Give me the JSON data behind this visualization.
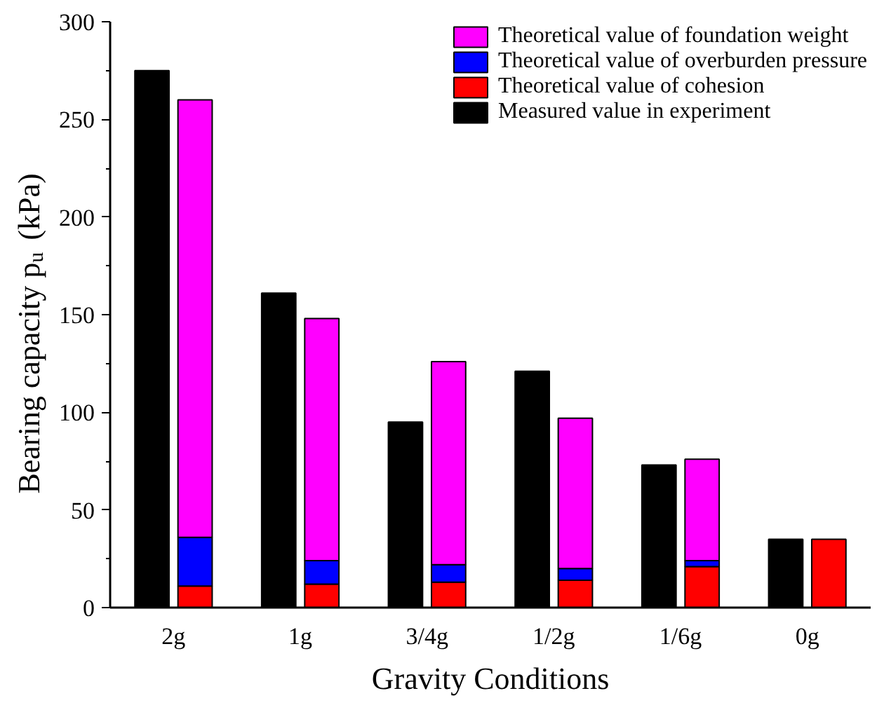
{
  "chart_data": {
    "type": "bar",
    "xlabel": "Gravity Conditions",
    "ylabel": "Bearing capacity p$_{u}$ (kPa)",
    "categories": [
      "2g",
      "1g",
      "3/4g",
      "1/2g",
      "1/6g",
      "0g"
    ],
    "ylim": [
      0,
      300
    ],
    "yticks": [
      0,
      50,
      100,
      150,
      200,
      250,
      300
    ],
    "legend": "top right",
    "grid": false,
    "series": [
      {
        "name": "Theoretical value of cohesion",
        "color": "#ff0000",
        "base": [
          0,
          0,
          0,
          0,
          0,
          0
        ],
        "values": [
          11,
          12,
          13,
          14,
          21,
          35
        ]
      },
      {
        "name": "Theoretical value of overburden pressure",
        "color": "#0000ff",
        "base": [
          11,
          12,
          13,
          14,
          21,
          null
        ],
        "values": [
          25,
          12,
          9,
          6,
          3,
          null
        ]
      },
      {
        "name": "Theoretical value of foundation weight",
        "color": "#ff00ff",
        "base": [
          36,
          24,
          22,
          20,
          24,
          null
        ],
        "values": [
          224,
          124,
          104,
          77,
          52,
          null
        ]
      },
      {
        "name": "Measured value in experiment",
        "color": "#000000",
        "type": "bar",
        "values": [
          275,
          161,
          95,
          121,
          73,
          35
        ]
      }
    ]
  }
}
